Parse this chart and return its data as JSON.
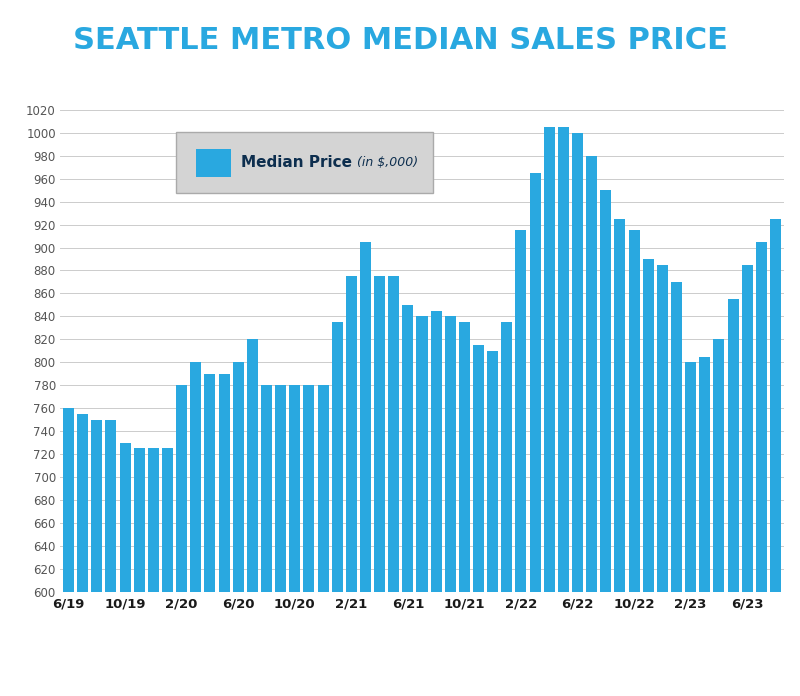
{
  "title": "SEATTLE METRO MEDIAN SALES PRICE",
  "title_bg_color": "#0d2e4e",
  "title_text_color": "#29a8e0",
  "bar_color": "#29a8e0",
  "chart_bg_color": "#ffffff",
  "footer_bg_color": "#0d2e4e",
  "footer_text_color": "#ffffff",
  "legend_bg_color": "#d4d4d4",
  "legend_edge_color": "#aaaaaa",
  "legend_text_bold": "Median Price",
  "legend_text_italic": " (in $,000)",
  "legend_text_color": "#0d2e4e",
  "tick_label_color": "#1a1a1a",
  "ytick_color": "#555555",
  "grid_color": "#cccccc",
  "ylim_min": 600,
  "ylim_max": 1040,
  "ytick_step": 20,
  "values": [
    760,
    755,
    750,
    750,
    730,
    725,
    725,
    725,
    780,
    800,
    790,
    790,
    800,
    820,
    780,
    780,
    780,
    780,
    780,
    835,
    875,
    905,
    875,
    875,
    850,
    840,
    845,
    840,
    835,
    815,
    810,
    835,
    915,
    965,
    1005,
    1005,
    1000,
    980,
    950,
    925,
    915,
    890,
    885,
    870,
    800,
    805,
    820,
    855,
    885,
    905,
    925
  ],
  "xtick_positions": [
    0,
    4,
    8,
    12,
    16,
    20,
    24,
    28,
    32,
    36,
    40,
    44,
    48
  ],
  "xtick_labels": [
    "6/19",
    "10/19",
    "2/20",
    "6/20",
    "10/20",
    "2/21",
    "6/21",
    "10/21",
    "2/22",
    "6/22",
    "10/22",
    "2/23",
    "6/23"
  ]
}
